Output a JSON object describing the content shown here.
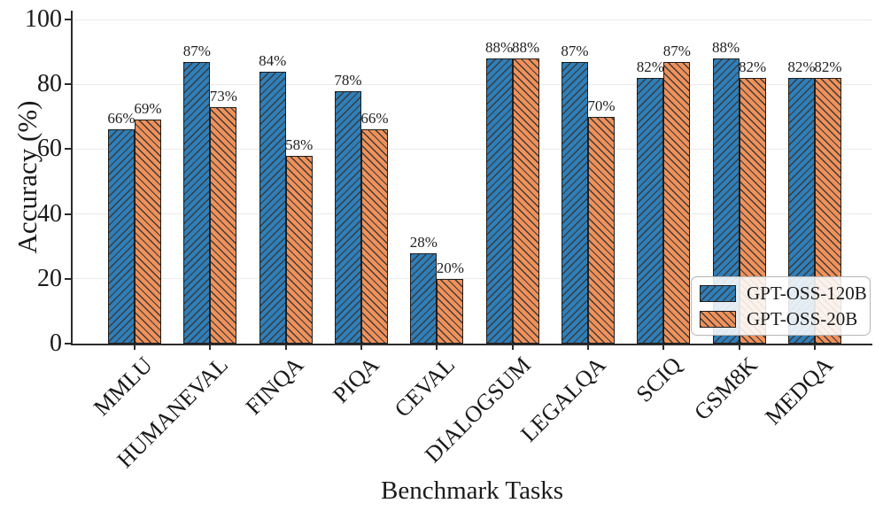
{
  "chart_data": {
    "type": "bar",
    "title": "",
    "xlabel": "Benchmark Tasks",
    "ylabel": "Accuracy (%)",
    "categories": [
      "MMLU",
      "HUMANEVAL",
      "FINQA",
      "PIQA",
      "CEVAL",
      "DIALOGSUM",
      "LEGALQA",
      "SCIQ",
      "GSM8K",
      "MEDQA"
    ],
    "series": [
      {
        "name": "GPT-OSS-120B",
        "color": "#2e7fba",
        "hatch": "/",
        "values": [
          66,
          87,
          84,
          78,
          28,
          88,
          87,
          82,
          88,
          82
        ]
      },
      {
        "name": "GPT-OSS-20B",
        "color": "#f0915a",
        "hatch": "\\",
        "values": [
          69,
          73,
          58,
          66,
          20,
          88,
          70,
          87,
          82,
          82
        ]
      }
    ],
    "value_label_suffix": "%",
    "ylim": [
      0,
      100
    ],
    "yticks": [
      0,
      20,
      40,
      60,
      80,
      100
    ],
    "grid": "horizontal-faint",
    "legend_position": "lower right",
    "colors": {
      "axis": "#2b2b2b",
      "grid": "#ebebeb",
      "hatch": "#3a3a3a",
      "bar_edge": "#1e1e1e",
      "text": "#1a1a1a"
    }
  }
}
